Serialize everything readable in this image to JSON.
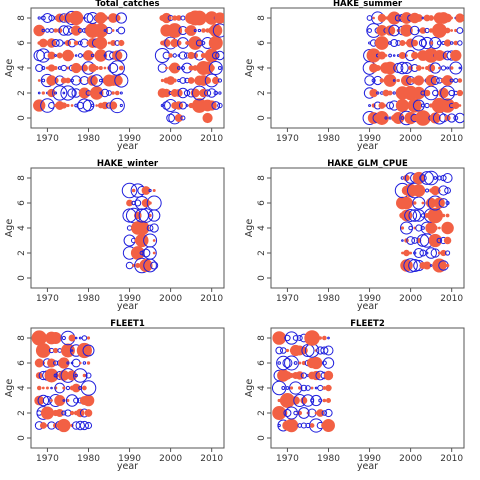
{
  "colors": {
    "positive": "#f26044",
    "negative": "#1f1fdd",
    "frame": "#555555",
    "text": "#333333"
  },
  "chart_data": [
    {
      "type": "scatter",
      "title": "Total_catches",
      "xlabel": "year",
      "ylabel": "Age",
      "xlim": [
        1966,
        2013
      ],
      "ylim": [
        -0.8,
        8.8
      ],
      "xticks": [
        1970,
        1980,
        1990,
        2000,
        2010
      ],
      "yticks": [
        0,
        2,
        4,
        6,
        8
      ],
      "year_ranges": [
        [
          1968,
          1988
        ],
        [
          1998,
          2012
        ]
      ],
      "ages": [
        1,
        2,
        3,
        4,
        5,
        6,
        7,
        8
      ],
      "age_zero_years": [
        2000,
        2001,
        2002,
        2003,
        2009
      ]
    },
    {
      "type": "scatter",
      "title": "HAKE_summer",
      "xlabel": "year",
      "ylabel": "Age",
      "xlim": [
        1966,
        2013
      ],
      "ylim": [
        -0.8,
        8.8
      ],
      "xticks": [
        1970,
        1980,
        1990,
        2000,
        2010
      ],
      "yticks": [
        0,
        2,
        4,
        6,
        8
      ],
      "year_ranges": [
        [
          1990,
          2012
        ]
      ],
      "ages": [
        0,
        1,
        2,
        3,
        4,
        5,
        6,
        7,
        8
      ]
    },
    {
      "type": "scatter",
      "title": "HAKE_winter",
      "xlabel": "year",
      "ylabel": "Age",
      "xlim": [
        1966,
        2013
      ],
      "ylim": [
        -0.8,
        8.8
      ],
      "xticks": [
        1970,
        1980,
        1990,
        2000,
        2010
      ],
      "yticks": [
        0,
        2,
        4,
        6,
        8
      ],
      "year_ranges": [
        [
          1990,
          1996
        ]
      ],
      "ages": [
        1,
        2,
        3,
        4,
        5,
        6,
        7
      ]
    },
    {
      "type": "scatter",
      "title": "HAKE_GLM_CPUE",
      "xlabel": "year",
      "ylabel": "Age",
      "xlim": [
        1966,
        2013
      ],
      "ylim": [
        -0.8,
        8.8
      ],
      "xticks": [
        1970,
        1980,
        1990,
        2000,
        2010
      ],
      "yticks": [
        0,
        2,
        4,
        6,
        8
      ],
      "year_ranges": [
        [
          1998,
          2009
        ]
      ],
      "ages": [
        1,
        2,
        3,
        4,
        5,
        6,
        7,
        8
      ]
    },
    {
      "type": "scatter",
      "title": "FLEET1",
      "xlabel": "year",
      "ylabel": "Age",
      "xlim": [
        1966,
        2013
      ],
      "ylim": [
        -0.8,
        8.8
      ],
      "xticks": [
        1970,
        1980,
        1990,
        2000,
        2010
      ],
      "yticks": [
        0,
        2,
        4,
        6,
        8
      ],
      "year_ranges": [
        [
          1968,
          1980
        ]
      ],
      "ages": [
        1,
        2,
        3,
        4,
        5,
        6,
        7,
        8
      ]
    },
    {
      "type": "scatter",
      "title": "FLEET2",
      "xlabel": "year",
      "ylabel": "Age",
      "xlim": [
        1966,
        2013
      ],
      "ylim": [
        -0.8,
        8.8
      ],
      "xticks": [
        1970,
        1980,
        1990,
        2000,
        2010
      ],
      "yticks": [
        0,
        2,
        4,
        6,
        8
      ],
      "year_ranges": [
        [
          1968,
          1980
        ]
      ],
      "ages": [
        1,
        2,
        3,
        4,
        5,
        6,
        7,
        8
      ]
    }
  ]
}
